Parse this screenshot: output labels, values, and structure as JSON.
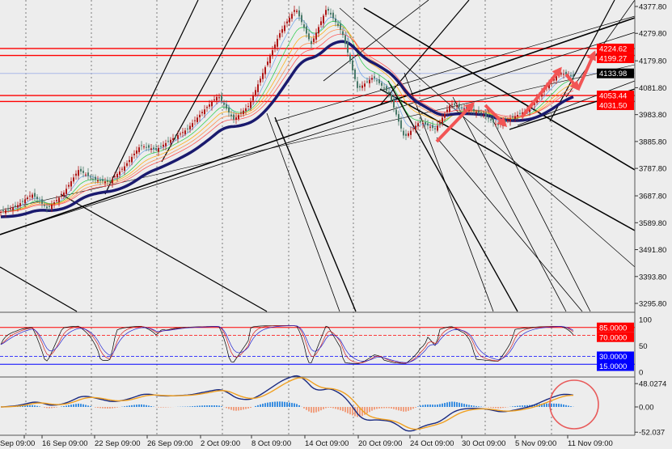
{
  "chart_data": [
    {
      "type": "candlestick",
      "panel": "price",
      "y_ticks": [
        "4377.80",
        "4279.80",
        "4179.80",
        "4081.80",
        "3983.80",
        "3885.80",
        "3787.80",
        "3687.80",
        "3589.80",
        "3491.80",
        "3393.80",
        "3295.80"
      ],
      "ylim": [
        3295.8,
        4377.8
      ],
      "price_path": [
        3629,
        3650,
        3694,
        3641,
        3694,
        3782,
        3747,
        3738,
        3797,
        3871,
        3856,
        3894,
        3930,
        3995,
        4053,
        3965,
        4018,
        4151,
        4283,
        4372,
        4239,
        4372,
        4283,
        4077,
        4121,
        4062,
        3900,
        3959,
        3930,
        4024,
        4003,
        3988,
        3944,
        3974,
        4003,
        4077,
        4136,
        4121
      ],
      "levels": [
        {
          "value": "4224.62",
          "color": "#ff0000"
        },
        {
          "value": "4199.27",
          "color": "#ff0000"
        },
        {
          "value": "4133.98",
          "color": "#000000",
          "line": "#aab8e8"
        },
        {
          "value": "4053.44",
          "color": "#ff0000"
        },
        {
          "value": "4031.50",
          "color": "#ff0000"
        }
      ],
      "ma_color": "#1a1a6e",
      "grid": true
    },
    {
      "type": "line",
      "panel": "oscillator",
      "y_ticks": [
        "100",
        "50",
        "0"
      ],
      "ylim": [
        0,
        100
      ],
      "levels": [
        {
          "value": "85.0000",
          "color": "#ff0000"
        },
        {
          "value": "70.0000",
          "color": "#ff0000"
        },
        {
          "value": "30.0000",
          "color": "#0000ff"
        },
        {
          "value": "15.0000",
          "color": "#0000ff"
        }
      ]
    },
    {
      "type": "bar",
      "panel": "macd",
      "y_ticks": [
        "48.0274",
        "0.00",
        "-52.037"
      ],
      "ylim": [
        -52.037,
        48.0274
      ]
    }
  ],
  "time_axis": [
    "Sep 09:00",
    "16 Sep 09:00",
    "22 Sep 09:00",
    "26 Sep 09:00",
    "2 Oct 09:00",
    "8 Oct 09:00",
    "14 Oct 09:00",
    "20 Oct 09:00",
    "24 Oct 09:00",
    "30 Oct 09:00",
    "5 Nov 09:00",
    "11 Nov 09:00"
  ]
}
